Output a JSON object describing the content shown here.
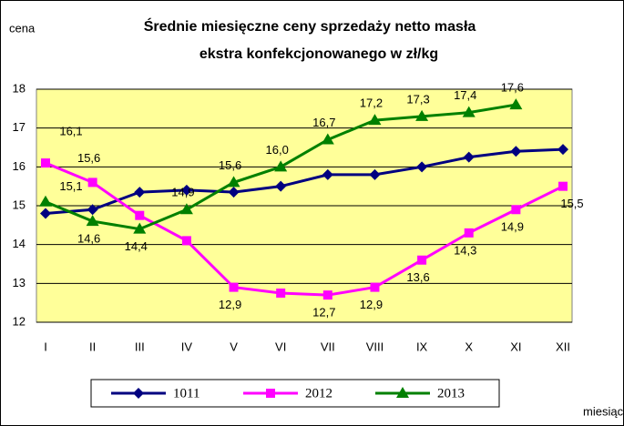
{
  "chart_data": {
    "type": "line",
    "title": "Średnie miesięczne ceny sprzedaży netto masła",
    "subtitle": "ekstra konfekcjonowanego w zł/kg",
    "y_label": "cena",
    "x_label": "miesiąc",
    "categories": [
      "I",
      "II",
      "III",
      "IV",
      "V",
      "VI",
      "VII",
      "VIII",
      "IX",
      "X",
      "XI",
      "XII"
    ],
    "series": [
      {
        "name": "1011",
        "color": "#000080",
        "marker": "diamond",
        "values": [
          14.8,
          14.9,
          15.35,
          15.4,
          15.35,
          15.5,
          15.8,
          15.8,
          16.0,
          16.25,
          16.4,
          16.45
        ]
      },
      {
        "name": "2012",
        "color": "#ff00ff",
        "marker": "square",
        "values": [
          16.1,
          15.6,
          14.75,
          14.1,
          12.9,
          12.75,
          12.7,
          12.9,
          13.6,
          14.3,
          14.9,
          15.5
        ],
        "value_labels": [
          "16,1",
          "15,6",
          null,
          null,
          "12,9",
          null,
          "12,7",
          "12,9",
          "13,6",
          "14,3",
          "14,9",
          "15,5"
        ]
      },
      {
        "name": "2013",
        "color": "#008000",
        "marker": "triangle",
        "values": [
          15.1,
          14.6,
          14.4,
          14.9,
          15.6,
          16.0,
          16.7,
          17.2,
          17.3,
          17.4,
          17.6,
          null
        ],
        "value_labels": [
          "15,1",
          "14,6",
          "14,4",
          "14,9",
          "15,6",
          "16,0",
          "16,7",
          "17,2",
          "17,3",
          "17,4",
          "17,6",
          null
        ]
      }
    ],
    "ylim": [
      12,
      18
    ],
    "yticks": [
      12,
      13,
      14,
      15,
      16,
      17,
      18
    ],
    "grid": true,
    "plot_background": "#ffff99"
  }
}
